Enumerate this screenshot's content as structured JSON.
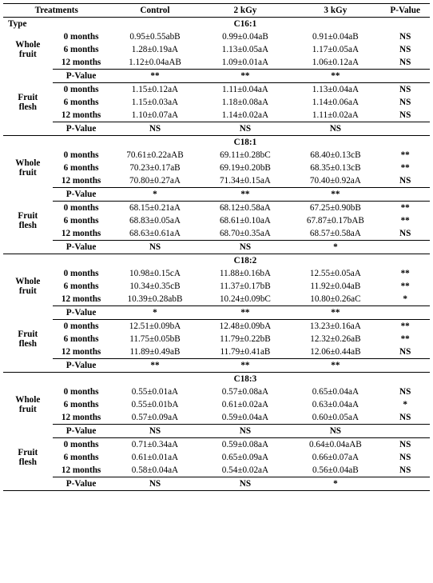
{
  "header": {
    "c0": "Treatments",
    "c1": "Control",
    "c2": "2 kGy",
    "c3": "3 kGy",
    "c4": "P-Value",
    "type": "Type"
  },
  "labels": {
    "m0": "0 months",
    "m6": "6 months",
    "m12": "12 months",
    "pv": "P-Value",
    "whole": "Whole fruit",
    "flesh": "Fruit flesh"
  },
  "sig": {
    "NS": "NS",
    "s1": "*",
    "s2": "**"
  },
  "sections": [
    {
      "name": "C16:1",
      "whole": {
        "m0": [
          "0.95±0.55abB",
          "0.99±0.04aB",
          "0.91±0.04aB",
          "NS"
        ],
        "m6": [
          "1.28±0.19aA",
          "1.13±0.05aA",
          "1.17±0.05aA",
          "NS"
        ],
        "m12": [
          "1.12±0.04aAB",
          "1.09±0.01aA",
          "1.06±0.12aA",
          "NS"
        ],
        "pv": [
          "**",
          "**",
          "**",
          ""
        ]
      },
      "flesh": {
        "m0": [
          "1.15±0.12aA",
          "1.11±0.04aA",
          "1.13±0.04aA",
          "NS"
        ],
        "m6": [
          "1.15±0.03aA",
          "1.18±0.08aA",
          "1.14±0.06aA",
          "NS"
        ],
        "m12": [
          "1.10±0.07aA",
          "1.14±0.02aA",
          "1.11±0.02aA",
          "NS"
        ],
        "pv": [
          "NS",
          "NS",
          "NS",
          ""
        ]
      }
    },
    {
      "name": "C18:1",
      "whole": {
        "m0": [
          "70.61±0.22aAB",
          "69.11±0.28bC",
          "68.40±0.13cB",
          "**"
        ],
        "m6": [
          "70.23±0.17aB",
          "69.19±0.20bB",
          "68.35±0.13cB",
          "**"
        ],
        "m12": [
          "70.80±0.27aA",
          "71.34±0.15aA",
          "70.40±0.92aA",
          "NS"
        ],
        "pv": [
          "*",
          "**",
          "**",
          ""
        ]
      },
      "flesh": {
        "m0": [
          "68.15±0.21aA",
          "68.12±0.58aA",
          "67.25±0.90bB",
          "**"
        ],
        "m6": [
          "68.83±0.05aA",
          "68.61±0.10aA",
          "67.87±0.17bAB",
          "**"
        ],
        "m12": [
          "68.63±0.61aA",
          "68.70±0.35aA",
          "68.57±0.58aA",
          "NS"
        ],
        "pv": [
          "NS",
          "NS",
          "*",
          ""
        ]
      }
    },
    {
      "name": "C18:2",
      "whole": {
        "m0": [
          "10.98±0.15cA",
          "11.88±0.16bA",
          "12.55±0.05aA",
          "**"
        ],
        "m6": [
          "10.34±0.35cB",
          "11.37±0.17bB",
          "11.92±0.04aB",
          "**"
        ],
        "m12": [
          "10.39±0.28abB",
          "10.24±0.09bC",
          "10.80±0.26aC",
          "*"
        ],
        "pv": [
          "*",
          "**",
          "**",
          ""
        ]
      },
      "flesh": {
        "m0": [
          "12.51±0.09bA",
          "12.48±0.09bA",
          "13.23±0.16aA",
          "**"
        ],
        "m6": [
          "11.75±0.05bB",
          "11.79±0.22bB",
          "12.32±0.26aB",
          "**"
        ],
        "m12": [
          "11.89±0.49aB",
          "11.79±0.41aB",
          "12.06±0.44aB",
          "NS"
        ],
        "pv": [
          "**",
          "**",
          "**",
          ""
        ]
      }
    },
    {
      "name": "C18:3",
      "whole": {
        "m0": [
          "0.55±0.01aA",
          "0.57±0.08aA",
          "0.65±0.04aA",
          "NS"
        ],
        "m6": [
          "0.55±0.01bA",
          "0.61±0.02aA",
          "0.63±0.04aA",
          "*"
        ],
        "m12": [
          "0.57±0.09aA",
          "0.59±0.04aA",
          "0.60±0.05aA",
          "NS"
        ],
        "pv": [
          "NS",
          "NS",
          "NS",
          ""
        ]
      },
      "flesh": {
        "m0": [
          "0.71±0.34aA",
          "0.59±0.08aA",
          "0.64±0.04aAB",
          "NS"
        ],
        "m6": [
          "0.61±0.01aA",
          "0.65±0.09aA",
          "0.66±0.07aA",
          "NS"
        ],
        "m12": [
          "0.58±0.04aA",
          "0.54±0.02aA",
          "0.56±0.04aB",
          "NS"
        ],
        "pv": [
          "NS",
          "NS",
          "*",
          ""
        ]
      }
    }
  ]
}
